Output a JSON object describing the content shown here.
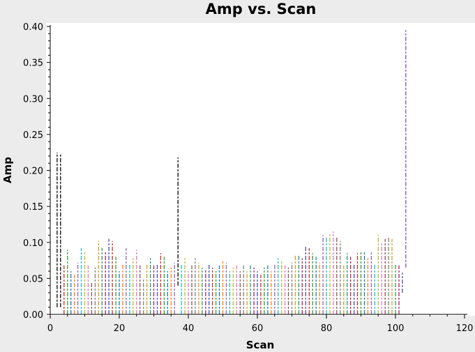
{
  "chart_data": {
    "type": "scatter",
    "title": "Amp vs. Scan",
    "xlabel": "Scan",
    "ylabel": "Amp",
    "xlim": [
      0,
      120
    ],
    "ylim": [
      0,
      0.4
    ],
    "xticks": [
      0,
      20,
      40,
      60,
      80,
      100,
      120
    ],
    "yticks": [
      0.0,
      0.05,
      0.1,
      0.15,
      0.2,
      0.25,
      0.3,
      0.35,
      0.4
    ],
    "ytick_labels": [
      "0.00",
      "0.05",
      "0.10",
      "0.15",
      "0.20",
      "0.25",
      "0.30",
      "0.35",
      "0.40"
    ],
    "grid": false,
    "background": "#ffffff",
    "series": [
      {
        "color": "#000000",
        "scans": [
          {
            "x": 2,
            "y": [
              0.01,
              0.225
            ]
          },
          {
            "x": 3,
            "y": [
              0.01,
              0.222
            ]
          },
          {
            "x": 37,
            "y": [
              0.04,
              0.218
            ]
          }
        ]
      },
      {
        "color": "#7b52d4",
        "scans": [
          {
            "x": 103,
            "y": [
              0.065,
              0.395
            ]
          }
        ]
      },
      {
        "color": "#multi",
        "scans": [
          {
            "x": 4,
            "y": [
              0.0,
              0.068
            ]
          },
          {
            "x": 5,
            "y": [
              0.0,
              0.09
            ]
          },
          {
            "x": 6,
            "y": [
              0.0,
              0.06
            ]
          },
          {
            "x": 7,
            "y": [
              0.0,
              0.055
            ]
          },
          {
            "x": 8,
            "y": [
              0.0,
              0.072
            ]
          },
          {
            "x": 9,
            "y": [
              0.0,
              0.092
            ]
          },
          {
            "x": 10,
            "y": [
              0.0,
              0.088
            ]
          },
          {
            "x": 11,
            "y": [
              0.0,
              0.068
            ]
          },
          {
            "x": 12,
            "y": [
              0.0,
              0.045
            ]
          },
          {
            "x": 13,
            "y": [
              0.0,
              0.065
            ]
          },
          {
            "x": 14,
            "y": [
              0.0,
              0.102
            ]
          },
          {
            "x": 15,
            "y": [
              0.0,
              0.092
            ]
          },
          {
            "x": 16,
            "y": [
              0.0,
              0.088
            ]
          },
          {
            "x": 17,
            "y": [
              0.0,
              0.105
            ]
          },
          {
            "x": 18,
            "y": [
              0.0,
              0.102
            ]
          },
          {
            "x": 19,
            "y": [
              0.0,
              0.08
            ]
          },
          {
            "x": 20,
            "y": [
              0.0,
              0.06
            ]
          },
          {
            "x": 21,
            "y": [
              0.0,
              0.07
            ]
          },
          {
            "x": 22,
            "y": [
              0.0,
              0.092
            ]
          },
          {
            "x": 23,
            "y": [
              0.0,
              0.07
            ]
          },
          {
            "x": 24,
            "y": [
              0.0,
              0.078
            ]
          },
          {
            "x": 25,
            "y": [
              0.0,
              0.09
            ]
          },
          {
            "x": 26,
            "y": [
              0.0,
              0.068
            ]
          },
          {
            "x": 27,
            "y": [
              0.0,
              0.05
            ]
          },
          {
            "x": 28,
            "y": [
              0.0,
              0.07
            ]
          },
          {
            "x": 29,
            "y": [
              0.0,
              0.078
            ]
          },
          {
            "x": 30,
            "y": [
              0.0,
              0.068
            ]
          },
          {
            "x": 31,
            "y": [
              0.0,
              0.07
            ]
          },
          {
            "x": 32,
            "y": [
              0.0,
              0.085
            ]
          },
          {
            "x": 33,
            "y": [
              0.0,
              0.08
            ]
          },
          {
            "x": 34,
            "y": [
              0.0,
              0.06
            ]
          },
          {
            "x": 35,
            "y": [
              0.0,
              0.065
            ]
          },
          {
            "x": 36,
            "y": [
              0.0,
              0.072
            ]
          },
          {
            "x": 38,
            "y": [
              0.0,
              0.07
            ]
          },
          {
            "x": 39,
            "y": [
              0.0,
              0.078
            ]
          },
          {
            "x": 40,
            "y": [
              0.0,
              0.06
            ]
          },
          {
            "x": 41,
            "y": [
              0.0,
              0.068
            ]
          },
          {
            "x": 42,
            "y": [
              0.0,
              0.078
            ]
          },
          {
            "x": 43,
            "y": [
              0.0,
              0.072
            ]
          },
          {
            "x": 44,
            "y": [
              0.0,
              0.065
            ]
          },
          {
            "x": 45,
            "y": [
              0.0,
              0.062
            ]
          },
          {
            "x": 46,
            "y": [
              0.0,
              0.07
            ]
          },
          {
            "x": 47,
            "y": [
              0.0,
              0.065
            ]
          },
          {
            "x": 48,
            "y": [
              0.0,
              0.06
            ]
          },
          {
            "x": 49,
            "y": [
              0.0,
              0.068
            ]
          },
          {
            "x": 50,
            "y": [
              0.0,
              0.075
            ]
          },
          {
            "x": 51,
            "y": [
              0.0,
              0.072
            ]
          },
          {
            "x": 52,
            "y": [
              0.0,
              0.06
            ]
          },
          {
            "x": 53,
            "y": [
              0.0,
              0.065
            ]
          },
          {
            "x": 54,
            "y": [
              0.0,
              0.068
            ]
          },
          {
            "x": 55,
            "y": [
              0.0,
              0.06
            ]
          },
          {
            "x": 56,
            "y": [
              0.0,
              0.068
            ]
          },
          {
            "x": 57,
            "y": [
              0.0,
              0.06
            ]
          },
          {
            "x": 58,
            "y": [
              0.0,
              0.068
            ]
          },
          {
            "x": 59,
            "y": [
              0.0,
              0.065
            ]
          },
          {
            "x": 60,
            "y": [
              0.0,
              0.06
            ]
          },
          {
            "x": 61,
            "y": [
              0.0,
              0.055
            ]
          },
          {
            "x": 62,
            "y": [
              0.0,
              0.065
            ]
          },
          {
            "x": 63,
            "y": [
              0.0,
              0.068
            ]
          },
          {
            "x": 64,
            "y": [
              0.0,
              0.06
            ]
          },
          {
            "x": 65,
            "y": [
              0.0,
              0.07
            ]
          },
          {
            "x": 66,
            "y": [
              0.0,
              0.078
            ]
          },
          {
            "x": 67,
            "y": [
              0.0,
              0.075
            ]
          },
          {
            "x": 68,
            "y": [
              0.0,
              0.068
            ]
          },
          {
            "x": 69,
            "y": [
              0.0,
              0.065
            ]
          },
          {
            "x": 70,
            "y": [
              0.0,
              0.072
            ]
          },
          {
            "x": 71,
            "y": [
              0.0,
              0.082
            ]
          },
          {
            "x": 72,
            "y": [
              0.0,
              0.082
            ]
          },
          {
            "x": 73,
            "y": [
              0.0,
              0.078
            ]
          },
          {
            "x": 74,
            "y": [
              0.0,
              0.095
            ]
          },
          {
            "x": 75,
            "y": [
              0.0,
              0.092
            ]
          },
          {
            "x": 76,
            "y": [
              0.0,
              0.085
            ]
          },
          {
            "x": 77,
            "y": [
              0.0,
              0.08
            ]
          },
          {
            "x": 78,
            "y": [
              0.0,
              0.072
            ]
          },
          {
            "x": 79,
            "y": [
              0.0,
              0.11
            ]
          },
          {
            "x": 80,
            "y": [
              0.0,
              0.108
            ]
          },
          {
            "x": 81,
            "y": [
              0.0,
              0.112
            ]
          },
          {
            "x": 82,
            "y": [
              0.0,
              0.115
            ]
          },
          {
            "x": 83,
            "y": [
              0.0,
              0.108
            ]
          },
          {
            "x": 84,
            "y": [
              0.0,
              0.102
            ]
          },
          {
            "x": 85,
            "y": [
              0.0,
              0.068
            ]
          },
          {
            "x": 86,
            "y": [
              0.0,
              0.085
            ]
          },
          {
            "x": 87,
            "y": [
              0.0,
              0.08
            ]
          },
          {
            "x": 88,
            "y": [
              0.0,
              0.07
            ]
          },
          {
            "x": 89,
            "y": [
              0.0,
              0.085
            ]
          },
          {
            "x": 90,
            "y": [
              0.0,
              0.088
            ]
          },
          {
            "x": 91,
            "y": [
              0.0,
              0.088
            ]
          },
          {
            "x": 92,
            "y": [
              0.0,
              0.078
            ]
          },
          {
            "x": 93,
            "y": [
              0.0,
              0.088
            ]
          },
          {
            "x": 94,
            "y": [
              0.0,
              0.07
            ]
          },
          {
            "x": 95,
            "y": [
              0.0,
              0.11
            ]
          },
          {
            "x": 96,
            "y": [
              0.0,
              0.1
            ]
          },
          {
            "x": 97,
            "y": [
              0.0,
              0.105
            ]
          },
          {
            "x": 98,
            "y": [
              0.0,
              0.108
            ]
          },
          {
            "x": 99,
            "y": [
              0.0,
              0.105
            ]
          },
          {
            "x": 100,
            "y": [
              0.0,
              0.07
            ]
          },
          {
            "x": 101,
            "y": [
              0.0,
              0.068
            ]
          },
          {
            "x": 102,
            "y": [
              0.03,
              0.058
            ]
          }
        ]
      }
    ],
    "palette": [
      "#d62728",
      "#2ca02c",
      "#1f77b4",
      "#ff7f0e",
      "#9467bd",
      "#17becf",
      "#bcbd22",
      "#e377c2",
      "#8c564b",
      "#7f7f7f",
      "#d4a017",
      "#1a9e77",
      "#c2185b",
      "#3f51b5"
    ]
  }
}
